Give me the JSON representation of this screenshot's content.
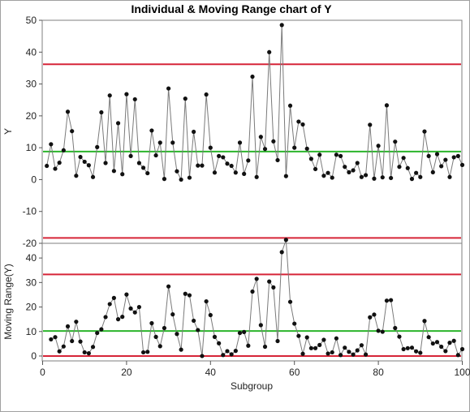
{
  "chart_data": {
    "type": "line",
    "title": "Individual & Moving Range chart of Y",
    "xlabel": "Subgroup",
    "xlim": [
      0,
      100
    ],
    "x_ticks": [
      0,
      20,
      40,
      60,
      80,
      100
    ],
    "individual": {
      "ylabel": "Y",
      "ylim": [
        -20,
        50
      ],
      "y_ticks": [
        50,
        40,
        30,
        20,
        10,
        0,
        -10,
        -20
      ],
      "ucl": 36.2,
      "center": 8.8,
      "lcl": -18.3,
      "values": [
        4.3,
        11.1,
        3.4,
        5.3,
        9.2,
        21.3,
        15.2,
        1.2,
        7.1,
        5.6,
        4.5,
        0.8,
        10.2,
        21.1,
        5.2,
        26.4,
        2.7,
        17.7,
        1.7,
        26.8,
        7.4,
        25.2,
        5.2,
        3.7,
        2.0,
        15.4,
        7.6,
        11.6,
        0.2,
        28.6,
        11.6,
        2.6,
        0.0,
        25.4,
        0.6,
        15.0,
        4.4,
        4.4,
        26.7,
        10.0,
        2.2,
        7.4,
        7.0,
        5.0,
        4.3,
        2.2,
        11.6,
        1.8,
        6.0,
        32.3,
        0.8,
        13.4,
        9.6,
        40.0,
        12.0,
        6.1,
        48.5,
        1.1,
        23.2,
        10.0,
        18.2,
        17.3,
        9.7,
        6.5,
        3.3,
        7.8,
        1.2,
        2.1,
        0.6,
        7.8,
        7.4,
        4.0,
        2.3,
        2.9,
        5.2,
        0.8,
        1.4,
        17.2,
        0.3,
        10.6,
        0.7,
        23.3,
        0.5,
        11.9,
        4.0,
        6.8,
        3.6,
        0.2,
        2.1,
        0.8,
        15.1,
        7.4,
        2.3,
        8.0,
        4.2,
        6.2,
        0.8,
        7.0,
        7.4,
        4.6
      ]
    },
    "moving_range": {
      "ylabel": "Moving Range(Y)",
      "ylim": [
        -2,
        46
      ],
      "y_ticks": [
        40,
        30,
        20,
        10,
        0
      ],
      "ucl": 33.3,
      "center": 10.2,
      "lcl": 0,
      "values": [
        6.8,
        7.7,
        1.9,
        3.9,
        12.1,
        6.1,
        14.0,
        5.9,
        1.5,
        1.1,
        3.7,
        9.4,
        10.9,
        15.9,
        21.2,
        23.7,
        15.0,
        16.0,
        25.1,
        19.4,
        17.8,
        20.0,
        1.5,
        1.7,
        13.4,
        7.8,
        4.0,
        11.4,
        28.4,
        17.0,
        9.0,
        2.6,
        25.4,
        24.8,
        14.4,
        10.6,
        0.0,
        22.3,
        16.7,
        7.8,
        5.2,
        0.4,
        2.0,
        0.7,
        2.1,
        9.4,
        9.8,
        4.2,
        26.3,
        31.5,
        12.6,
        3.8,
        30.4,
        28.0,
        6.1,
        42.4,
        47.4,
        22.1,
        13.2,
        8.2,
        0.9,
        7.6,
        3.2,
        3.2,
        4.5,
        6.6,
        1.0,
        1.5,
        7.2,
        0.4,
        3.4,
        1.7,
        0.6,
        2.3,
        4.4,
        0.6,
        15.8,
        16.9,
        10.3,
        9.9,
        22.6,
        22.8,
        11.4,
        7.9,
        2.8,
        3.2,
        3.4,
        1.9,
        1.3,
        14.3,
        7.7,
        5.1,
        5.7,
        3.8,
        2.0,
        5.4,
        6.2,
        0.4,
        2.8
      ]
    },
    "colors": {
      "control_limit": "#d62538",
      "center_line": "#2bb52b",
      "series_line": "#7a7a7a",
      "points": "#111111"
    }
  }
}
